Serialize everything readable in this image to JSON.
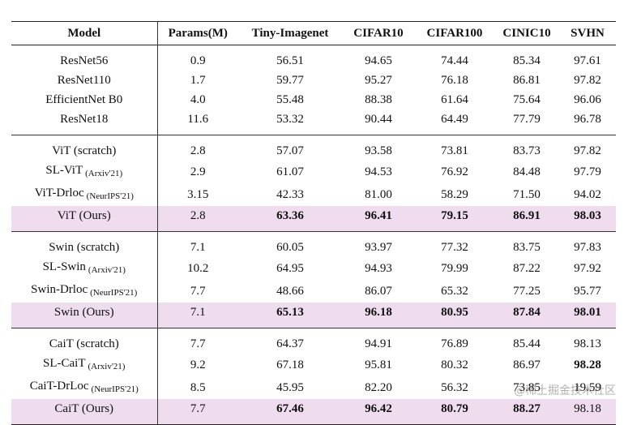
{
  "table": {
    "headers": [
      "Model",
      "Params(M)",
      "Tiny-Imagenet",
      "CIFAR10",
      "CIFAR100",
      "CINIC10",
      "SVHN"
    ],
    "groups": [
      {
        "rows": [
          {
            "model": "ResNet56",
            "venue": "",
            "ours": false,
            "cells": [
              "0.9",
              "56.51",
              "94.65",
              "74.44",
              "85.34",
              "97.61"
            ],
            "best": []
          },
          {
            "model": "ResNet110",
            "venue": "",
            "ours": false,
            "cells": [
              "1.7",
              "59.77",
              "95.27",
              "76.18",
              "86.81",
              "97.82"
            ],
            "best": []
          },
          {
            "model": "EfficientNet B0",
            "venue": "",
            "ours": false,
            "cells": [
              "4.0",
              "55.48",
              "88.38",
              "61.64",
              "75.64",
              "96.06"
            ],
            "best": []
          },
          {
            "model": "ResNet18",
            "venue": "",
            "ours": false,
            "cells": [
              "11.6",
              "53.32",
              "90.44",
              "64.49",
              "77.79",
              "96.78"
            ],
            "best": []
          }
        ]
      },
      {
        "rows": [
          {
            "model": "ViT (scratch)",
            "venue": "",
            "ours": false,
            "cells": [
              "2.8",
              "57.07",
              "93.58",
              "73.81",
              "83.73",
              "97.82"
            ],
            "best": []
          },
          {
            "model": "SL-ViT",
            "venue": "(Arxiv'21)",
            "ours": false,
            "cells": [
              "2.9",
              "61.07",
              "94.53",
              "76.92",
              "84.48",
              "97.79"
            ],
            "best": []
          },
          {
            "model": "ViT-Drloc",
            "venue": "(NeurIPS'21)",
            "ours": false,
            "cells": [
              "3.15",
              "42.33",
              "81.00",
              "58.29",
              "71.50",
              "94.02"
            ],
            "best": []
          },
          {
            "model": "ViT (Ours)",
            "venue": "",
            "ours": true,
            "cells": [
              "2.8",
              "63.36",
              "96.41",
              "79.15",
              "86.91",
              "98.03"
            ],
            "best": [
              1,
              2,
              3,
              4,
              5
            ]
          }
        ]
      },
      {
        "rows": [
          {
            "model": "Swin (scratch)",
            "venue": "",
            "ours": false,
            "cells": [
              "7.1",
              "60.05",
              "93.97",
              "77.32",
              "83.75",
              "97.83"
            ],
            "best": []
          },
          {
            "model": "SL-Swin",
            "venue": "(Arxiv'21)",
            "ours": false,
            "cells": [
              "10.2",
              "64.95",
              "94.93",
              "79.99",
              "87.22",
              "97.92"
            ],
            "best": []
          },
          {
            "model": "Swin-Drloc",
            "venue": "(NeurIPS'21)",
            "ours": false,
            "cells": [
              "7.7",
              "48.66",
              "86.07",
              "65.32",
              "77.25",
              "95.77"
            ],
            "best": []
          },
          {
            "model": "Swin (Ours)",
            "venue": "",
            "ours": true,
            "cells": [
              "7.1",
              "65.13",
              "96.18",
              "80.95",
              "87.84",
              "98.01"
            ],
            "best": [
              1,
              2,
              3,
              4,
              5
            ]
          }
        ]
      },
      {
        "rows": [
          {
            "model": "CaiT (scratch)",
            "venue": "",
            "ours": false,
            "cells": [
              "7.7",
              "64.37",
              "94.91",
              "76.89",
              "85.44",
              "98.13"
            ],
            "best": []
          },
          {
            "model": "SL-CaiT",
            "venue": "(Arxiv'21)",
            "ours": false,
            "cells": [
              "9.2",
              "67.18",
              "95.81",
              "80.32",
              "86.97",
              "98.28"
            ],
            "best": [
              5
            ]
          },
          {
            "model": "CaiT-DrLoc",
            "venue": "(NeurIPS'21)",
            "ours": false,
            "cells": [
              "8.5",
              "45.95",
              "82.20",
              "56.32",
              "73.85",
              "19.59"
            ],
            "best": []
          },
          {
            "model": "CaiT (Ours)",
            "venue": "",
            "ours": true,
            "cells": [
              "7.7",
              "67.46",
              "96.42",
              "80.79",
              "88.27",
              "98.18"
            ],
            "best": [
              1,
              2,
              3,
              4
            ]
          }
        ]
      }
    ]
  },
  "watermark": "@稀土掘金技术社区",
  "colors": {
    "highlight_row": "#efdcee",
    "text": "#111111",
    "rule": "#222222"
  }
}
